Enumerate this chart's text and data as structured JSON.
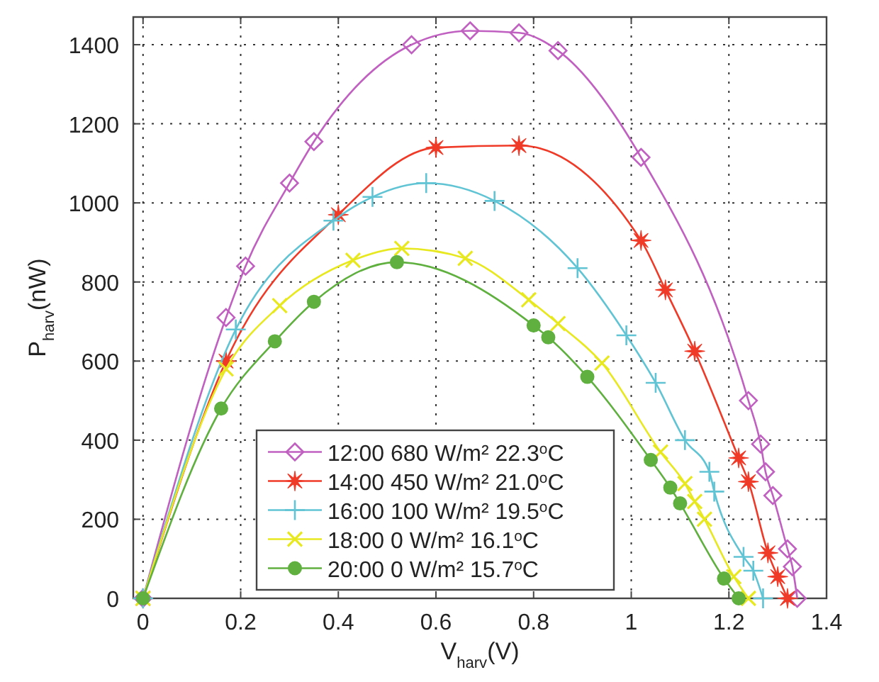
{
  "chart_data": {
    "type": "line",
    "xlabel": "V$_{harv}$(V)",
    "ylabel": "P$_{harv}$(nW)",
    "xlim": [
      -0.02,
      1.4
    ],
    "xticks": [
      0,
      0.2,
      0.4,
      0.6,
      0.8,
      {
        "value": 1,
        "label": "1"
      },
      1.2,
      1.4
    ],
    "ylim": [
      0,
      1470
    ],
    "yticks": [
      0,
      200,
      400,
      600,
      800,
      1000,
      1200,
      1400
    ],
    "grid": true,
    "legend": "bottom",
    "line_style": "solid",
    "series": [
      {
        "name": "12:00 680 W/m² 22.3$^{o}$C",
        "color": "#c060c0",
        "marker": "diamond",
        "x": [
          0,
          0.17,
          0.21,
          0.3,
          0.35,
          0.55,
          0.67,
          0.77,
          0.85,
          1.02,
          1.24,
          1.265,
          1.275,
          1.29,
          1.32,
          1.33,
          1.34
        ],
        "values": [
          0,
          710,
          840,
          1050,
          1155,
          1400,
          1435,
          1430,
          1385,
          1115,
          500,
          390,
          320,
          260,
          125,
          80,
          0
        ]
      },
      {
        "name": "14:00 450 W/m² 21.0$^{o}$C",
        "color": "#f03a28",
        "marker": "star",
        "x": [
          0,
          0.17,
          0.4,
          0.6,
          0.77,
          1.02,
          1.07,
          1.13,
          1.22,
          1.24,
          1.28,
          1.3,
          1.32
        ],
        "values": [
          0,
          600,
          970,
          1140,
          1145,
          905,
          780,
          625,
          355,
          295,
          115,
          55,
          0
        ]
      },
      {
        "name": "16:00 100 W/m² 19.5$^{o}$C",
        "color": "#60c4d4",
        "marker": "plus",
        "x": [
          0,
          0.19,
          0.39,
          0.47,
          0.58,
          0.72,
          0.89,
          0.99,
          1.05,
          1.11,
          1.16,
          1.17,
          1.23,
          1.25,
          1.27
        ],
        "values": [
          0,
          680,
          955,
          1015,
          1050,
          1005,
          835,
          665,
          545,
          400,
          320,
          270,
          105,
          70,
          0
        ]
      },
      {
        "name": "18:00 0 W/m² 16.1$^{o}$C",
        "color": "#e8e820",
        "marker": "cross",
        "x": [
          0,
          0.17,
          0.28,
          0.43,
          0.53,
          0.66,
          0.79,
          0.85,
          0.94,
          1.06,
          1.11,
          1.13,
          1.15,
          1.21,
          1.24
        ],
        "values": [
          0,
          580,
          740,
          855,
          885,
          860,
          755,
          695,
          595,
          370,
          290,
          245,
          200,
          55,
          0
        ]
      },
      {
        "name": "20:00 0 W/m² 15.7$^{o}$C",
        "color": "#60b040",
        "marker": "circle",
        "x": [
          0,
          0.16,
          0.27,
          0.35,
          0.52,
          0.8,
          0.83,
          0.91,
          1.04,
          1.08,
          1.1,
          1.19,
          1.22
        ],
        "values": [
          0,
          480,
          650,
          750,
          850,
          690,
          660,
          560,
          350,
          280,
          240,
          50,
          0
        ]
      }
    ]
  }
}
